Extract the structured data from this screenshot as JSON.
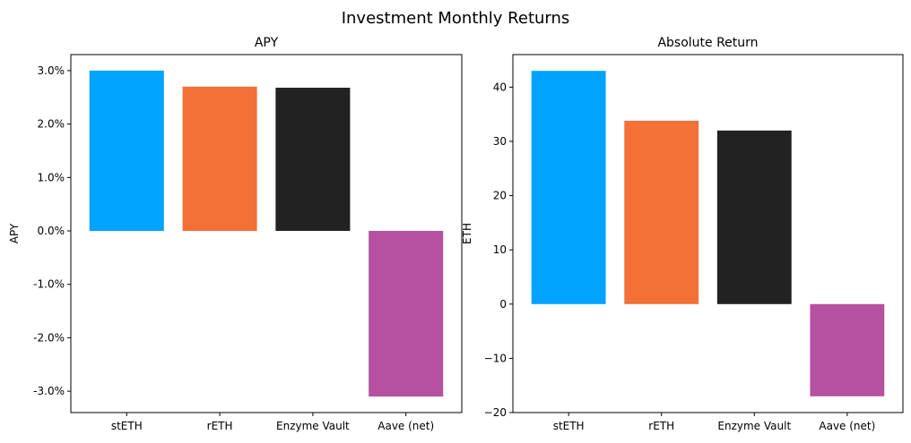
{
  "figure": {
    "title": "Investment Monthly Returns"
  },
  "colors": [
    "#00a3ff",
    "#f37036",
    "#222222",
    "#b551a0"
  ],
  "chart_data": [
    {
      "type": "bar",
      "title": "APY",
      "xlabel": "",
      "ylabel": "APY",
      "categories": [
        "stETH",
        "rETH",
        "Enzyme Vault",
        "Aave (net)"
      ],
      "values": [
        3.0,
        2.7,
        2.68,
        -3.1
      ],
      "ylim": [
        -3.4,
        3.3
      ],
      "yticks": [
        3.0,
        2.0,
        1.0,
        0.0,
        -1.0,
        -2.0,
        -3.0
      ],
      "ytick_labels": [
        "3.0%",
        "2.0%",
        "1.0%",
        "0.0%",
        "-1.0%",
        "-2.0%",
        "-3.0%"
      ],
      "grid": false,
      "legend": false
    },
    {
      "type": "bar",
      "title": "Absolute Return",
      "xlabel": "",
      "ylabel": "ETH",
      "categories": [
        "stETH",
        "rETH",
        "Enzyme Vault",
        "Aave (net)"
      ],
      "values": [
        43.0,
        33.8,
        32.0,
        -17.0
      ],
      "ylim": [
        -20,
        46
      ],
      "yticks": [
        40,
        30,
        20,
        10,
        0,
        -10,
        -20
      ],
      "ytick_labels": [
        "40",
        "30",
        "20",
        "10",
        "0",
        "−10",
        "−20"
      ],
      "grid": false,
      "legend": false
    }
  ]
}
